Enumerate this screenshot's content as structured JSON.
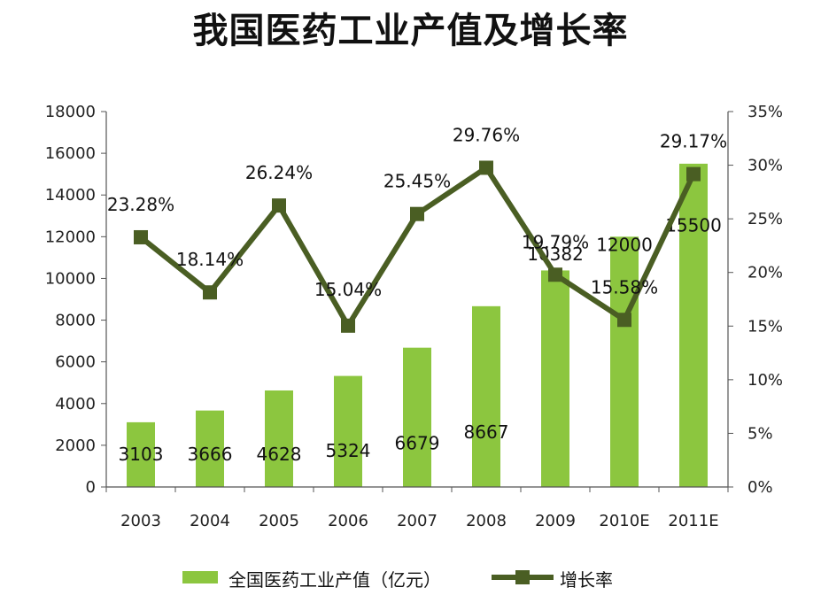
{
  "chart_data": {
    "type": "bar",
    "title": "我国医药工业产值及增长率",
    "categories": [
      "2003",
      "2004",
      "2005",
      "2006",
      "2007",
      "2008",
      "2009",
      "2010E",
      "2011E"
    ],
    "series": [
      {
        "name": "全国医药工业产值（亿元）",
        "type": "bar",
        "axis": "left",
        "values": [
          3103,
          3666,
          4628,
          5324,
          6679,
          8667,
          10382,
          12000,
          15500
        ],
        "labels": [
          "3103",
          "3666",
          "4628",
          "5324",
          "6679",
          "8667",
          "10382",
          "12000",
          "15500"
        ],
        "color": "#8cc63f"
      },
      {
        "name": "增长率",
        "type": "line",
        "axis": "right",
        "values": [
          23.28,
          18.14,
          26.24,
          15.04,
          25.45,
          29.76,
          19.79,
          15.58,
          29.17
        ],
        "labels": [
          "23.28%",
          "18.14%",
          "26.24%",
          "15.04%",
          "25.45%",
          "29.76%",
          "19.79%",
          "15.58%",
          "29.17%"
        ],
        "color": "#4a5e23"
      }
    ],
    "ylim_left": [
      0,
      18000
    ],
    "ylim_right": [
      0,
      35
    ],
    "left_ticks": [
      "0",
      "2000",
      "4000",
      "6000",
      "8000",
      "10000",
      "12000",
      "14000",
      "16000",
      "18000"
    ],
    "right_ticks": [
      "0%",
      "5%",
      "10%",
      "15%",
      "20%",
      "25%",
      "30%",
      "35%"
    ],
    "legend_position": "bottom",
    "grid": false
  }
}
